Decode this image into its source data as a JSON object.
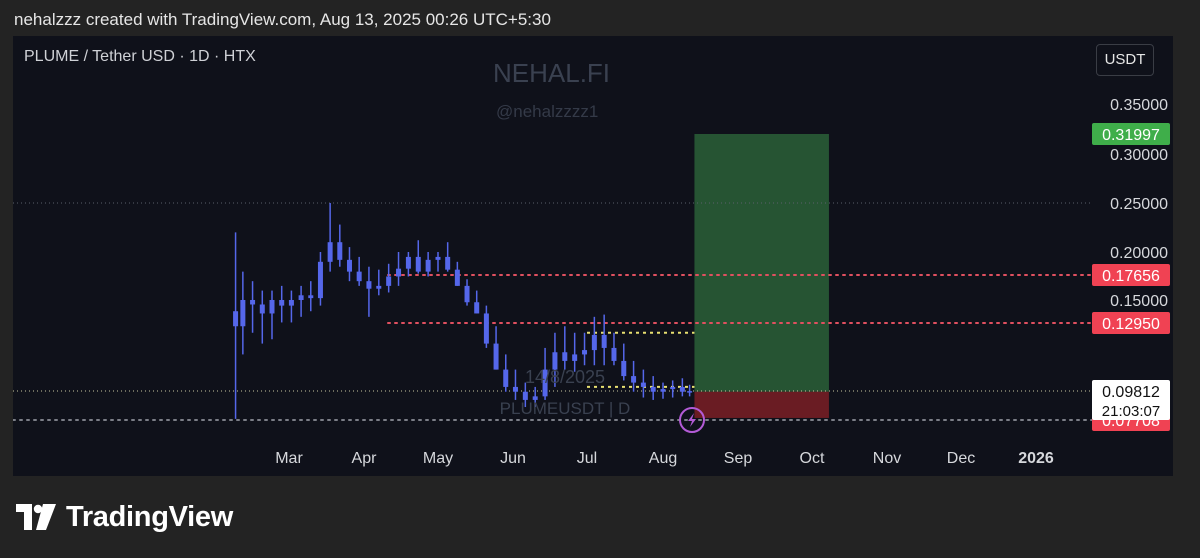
{
  "header": {
    "attribution": "nehalzzz created with TradingView.com, Aug 13, 2025 00:26 UTC+5:30"
  },
  "symbol": {
    "title": "PLUME / Tether USD · 1D · HTX"
  },
  "currency_button": {
    "label": "USDT"
  },
  "watermark": {
    "name": "NEHAL.FI",
    "handle": "@nehalzzzz1",
    "date": "14/8/2025",
    "symbol": "PLUMEUSDT | D"
  },
  "brand": {
    "name": "TradingView"
  },
  "colors": {
    "background": "#0f111a",
    "candle": "#5567ea",
    "profit_zone": "#2f6b3c",
    "loss_zone": "#7a1f26",
    "resistance_line": "#e05060",
    "range_line": "#e8e070",
    "label_red": "#f04253",
    "label_green": "#3fae4a"
  },
  "icons": {
    "alert": "lightning-icon",
    "logo": "tradingview-logo-icon"
  },
  "chart_data": {
    "type": "candlestick",
    "title": "PLUME / Tether USD · 1D · HTX",
    "x_axis": {
      "ticks": [
        "Mar",
        "Apr",
        "May",
        "Jun",
        "Jul",
        "Aug",
        "Sep",
        "Oct",
        "Nov",
        "Dec",
        "2026"
      ]
    },
    "y_axis": {
      "ticks": [
        "0.35000",
        "0.30000",
        "0.25000",
        "0.20000",
        "0.15000"
      ],
      "range": [
        0.065,
        0.38
      ]
    },
    "series": [
      {
        "x": [
          "2025-02-07",
          "2025-02-10",
          "2025-02-14",
          "2025-02-18",
          "2025-02-22",
          "2025-02-26",
          "2025-03-02",
          "2025-03-06",
          "2025-03-10",
          "2025-03-14",
          "2025-03-18",
          "2025-03-22",
          "2025-03-26",
          "2025-03-30",
          "2025-04-03",
          "2025-04-07",
          "2025-04-11",
          "2025-04-15",
          "2025-04-19",
          "2025-04-23",
          "2025-04-27",
          "2025-05-01",
          "2025-05-05",
          "2025-05-09",
          "2025-05-13",
          "2025-05-17",
          "2025-05-21",
          "2025-05-25",
          "2025-05-29",
          "2025-06-02",
          "2025-06-06",
          "2025-06-10",
          "2025-06-14",
          "2025-06-18",
          "2025-06-22",
          "2025-06-26",
          "2025-06-30",
          "2025-07-04",
          "2025-07-08",
          "2025-07-12",
          "2025-07-16",
          "2025-07-20",
          "2025-07-24",
          "2025-07-28",
          "2025-08-01",
          "2025-08-05",
          "2025-08-09",
          "2025-08-12"
        ],
        "open": [
          0.14,
          0.128,
          0.15,
          0.146,
          0.138,
          0.15,
          0.145,
          0.15,
          0.155,
          0.152,
          0.19,
          0.21,
          0.192,
          0.18,
          0.17,
          0.162,
          0.165,
          0.175,
          0.183,
          0.195,
          0.18,
          0.192,
          0.195,
          0.182,
          0.165,
          0.148,
          0.138,
          0.12,
          0.108,
          0.1,
          0.098,
          0.094,
          0.097,
          0.108,
          0.116,
          0.112,
          0.115,
          0.117,
          0.124,
          0.118,
          0.112,
          0.105,
          0.102,
          0.1,
          0.098,
          0.099,
          0.1,
          0.098
        ],
        "high": [
          0.22,
          0.18,
          0.17,
          0.16,
          0.16,
          0.165,
          0.16,
          0.165,
          0.17,
          0.2,
          0.25,
          0.228,
          0.205,
          0.195,
          0.185,
          0.182,
          0.188,
          0.2,
          0.2,
          0.212,
          0.2,
          0.2,
          0.21,
          0.19,
          0.172,
          0.16,
          0.145,
          0.128,
          0.115,
          0.108,
          0.102,
          0.1,
          0.118,
          0.125,
          0.128,
          0.125,
          0.125,
          0.135,
          0.137,
          0.125,
          0.12,
          0.112,
          0.108,
          0.105,
          0.102,
          0.103,
          0.104,
          0.101
        ],
        "low": [
          0.078,
          0.115,
          0.125,
          0.12,
          0.122,
          0.13,
          0.13,
          0.135,
          0.14,
          0.145,
          0.18,
          0.185,
          0.17,
          0.165,
          0.135,
          0.155,
          0.158,
          0.165,
          0.175,
          0.178,
          0.175,
          0.18,
          0.18,
          0.165,
          0.145,
          0.138,
          0.118,
          0.108,
          0.098,
          0.094,
          0.088,
          0.088,
          0.094,
          0.1,
          0.108,
          0.107,
          0.11,
          0.11,
          0.11,
          0.11,
          0.103,
          0.098,
          0.096,
          0.094,
          0.095,
          0.096,
          0.097,
          0.097
        ],
        "close": [
          0.128,
          0.15,
          0.146,
          0.138,
          0.15,
          0.145,
          0.15,
          0.155,
          0.152,
          0.19,
          0.21,
          0.192,
          0.18,
          0.17,
          0.162,
          0.165,
          0.175,
          0.183,
          0.195,
          0.18,
          0.192,
          0.195,
          0.182,
          0.165,
          0.148,
          0.138,
          0.12,
          0.108,
          0.1,
          0.098,
          0.094,
          0.097,
          0.108,
          0.116,
          0.112,
          0.115,
          0.117,
          0.124,
          0.118,
          0.112,
          0.105,
          0.102,
          0.1,
          0.098,
          0.099,
          0.1,
          0.098,
          0.0981
        ]
      }
    ],
    "horizontal_levels": [
      {
        "label": "0.17656",
        "value": 0.17656,
        "style": "red-dotted"
      },
      {
        "label": "0.12950",
        "value": 0.1295,
        "style": "red-dotted"
      },
      {
        "label": "0.09812",
        "value": 0.09812,
        "style": "current-price"
      },
      {
        "label": "0.09730",
        "value": 0.0973,
        "style": "gray"
      },
      {
        "label": "0.07708",
        "value": 0.07708,
        "style": "red-dotted"
      }
    ],
    "range_box": {
      "start": "2025-07-01",
      "end": "2025-08-14",
      "top": 0.125,
      "bottom": 0.1
    },
    "position": {
      "start": "2025-08-14",
      "end": "2025-10-08",
      "entry": 0.098,
      "target": 0.31997,
      "stop": 0.0788,
      "target_label": "0.31997"
    },
    "current_price": {
      "label": "0.09812",
      "countdown": "21:03:07"
    },
    "grid": false
  }
}
